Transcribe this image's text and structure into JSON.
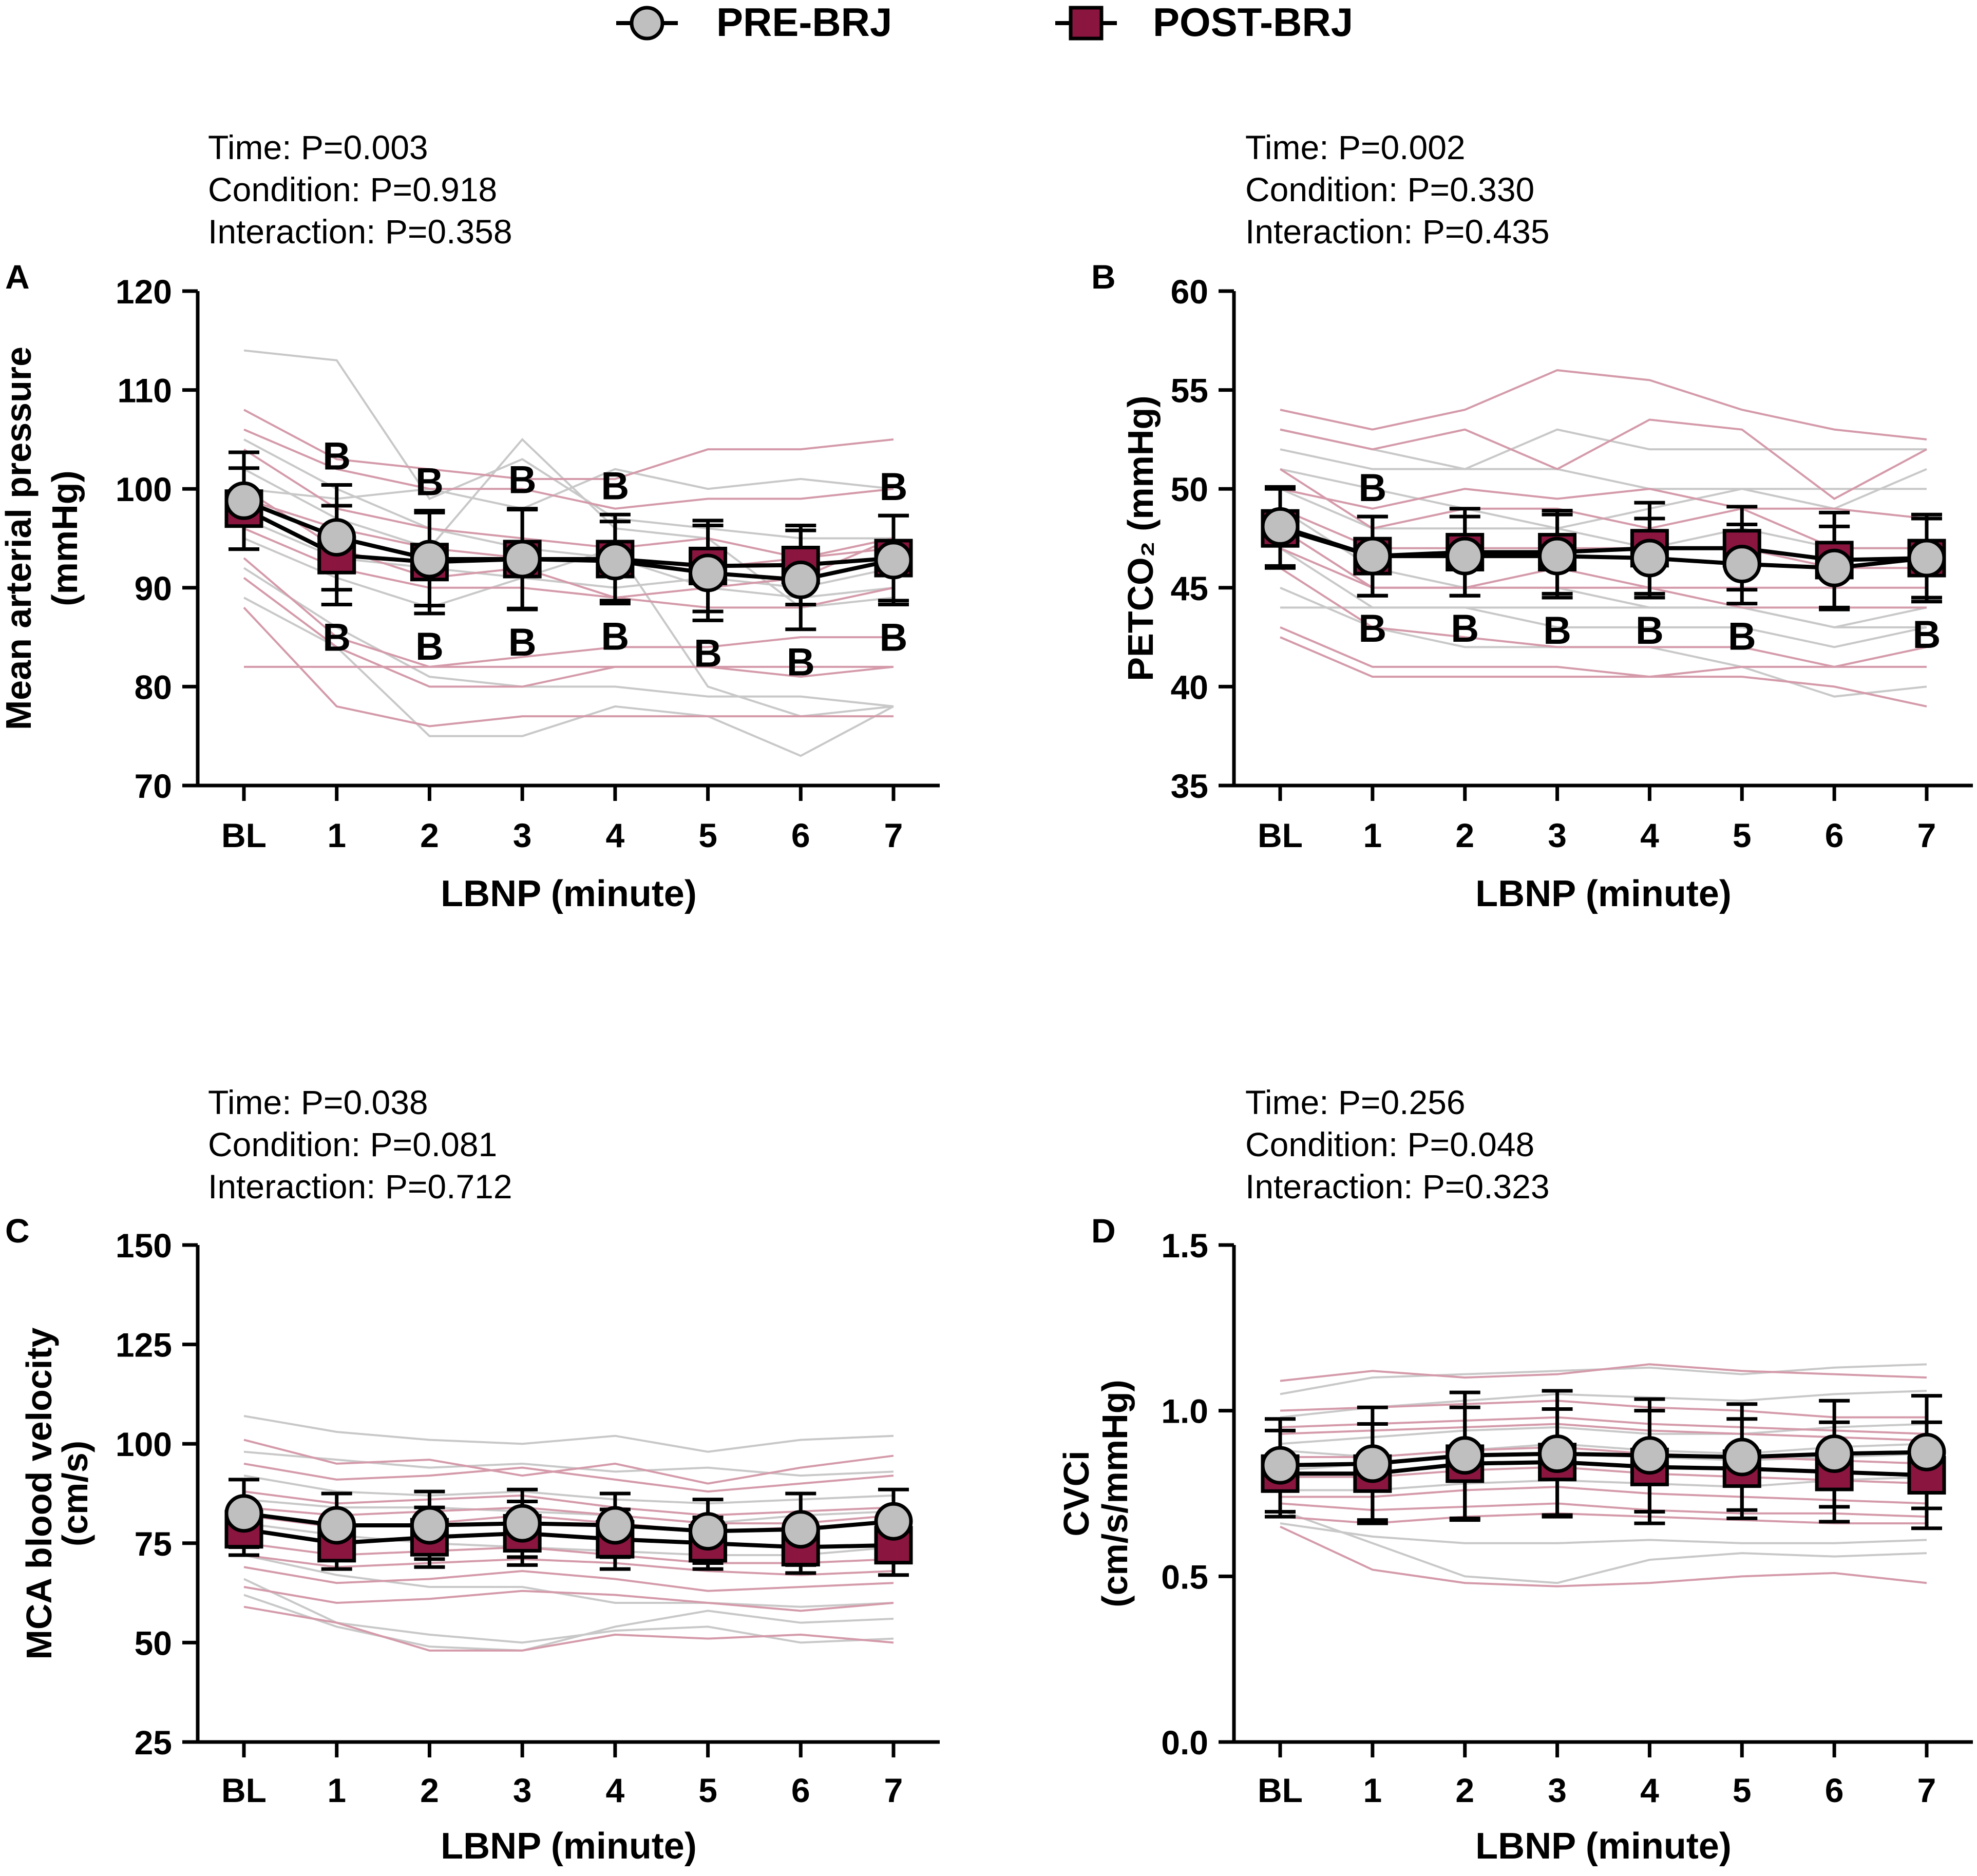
{
  "colors": {
    "pre_fill": "#bfbfbf",
    "post_fill": "#8a1640",
    "pre_individual": "#c8c8c8",
    "post_individual": "#d49aaa",
    "axis": "#000000"
  },
  "legend": [
    {
      "label": "PRE-BRJ",
      "marker": "circle"
    },
    {
      "label": "POST-BRJ",
      "marker": "square"
    }
  ],
  "chart_data": [
    {
      "type": "line",
      "panel": "A",
      "stats": [
        "Time: P=0.003",
        "Condition: P=0.918",
        "Interaction: P=0.358"
      ],
      "ylabel_lines": [
        "Mean arterial pressure",
        "(mmHg)"
      ],
      "xlabel": "LBNP (minute)",
      "categories": [
        "BL",
        "1",
        "2",
        "3",
        "4",
        "5",
        "6",
        "7"
      ],
      "ylim": [
        70,
        120
      ],
      "yticks": [
        70,
        80,
        90,
        100,
        110,
        120
      ],
      "ytick_labels": [
        "70",
        "80",
        "90",
        "100",
        "110",
        "120"
      ],
      "series": [
        {
          "name": "PRE-BRJ",
          "marker": "circle",
          "values": [
            98.8,
            95.1,
            92.9,
            92.9,
            92.7,
            91.5,
            90.8,
            92.8
          ],
          "errors": [
            4.9,
            5.3,
            4.7,
            5.1,
            4.0,
            4.8,
            5.0,
            4.5
          ]
        },
        {
          "name": "POST-BRJ",
          "marker": "square",
          "values": [
            98.0,
            93.3,
            92.6,
            92.9,
            92.9,
            92.2,
            92.3,
            93.0
          ],
          "errors": [
            4.1,
            5.0,
            5.2,
            5.0,
            4.5,
            4.6,
            4.0,
            4.3
          ]
        }
      ],
      "individual_pre": [
        [
          114,
          113,
          99,
          103,
          97,
          96,
          95,
          95
        ],
        [
          102,
          97,
          94,
          105,
          96,
          95,
          88,
          89
        ],
        [
          95,
          91,
          88,
          91,
          94,
          80,
          77,
          78
        ],
        [
          92,
          86,
          81,
          80,
          80,
          79,
          79,
          78
        ],
        [
          105,
          100,
          96,
          94,
          93,
          90,
          89,
          90
        ],
        [
          89,
          84,
          75,
          75,
          78,
          77,
          73,
          78
        ],
        [
          100,
          99,
          100,
          98,
          102,
          100,
          101,
          100
        ],
        [
          97,
          93,
          92,
          91,
          90,
          91,
          90,
          92
        ]
      ],
      "individual_post": [
        [
          108,
          103,
          102,
          101,
          101,
          104,
          104,
          105
        ],
        [
          104,
          98,
          96,
          95,
          94,
          95,
          93,
          94
        ],
        [
          100,
          94,
          91,
          92,
          89,
          90,
          91,
          95
        ],
        [
          96,
          92,
          90,
          90,
          89,
          88,
          88,
          90
        ],
        [
          93,
          85,
          82,
          83,
          84,
          84,
          85,
          85
        ],
        [
          91,
          84,
          80,
          80,
          82,
          82,
          81,
          82
        ],
        [
          88,
          78,
          76,
          77,
          77,
          77,
          77,
          77
        ],
        [
          82,
          82,
          82,
          82,
          82,
          82,
          82,
          82
        ],
        [
          106,
          102,
          100,
          100,
          98,
          99,
          99,
          100
        ],
        [
          99,
          96,
          94,
          93,
          93,
          92,
          93,
          95
        ]
      ],
      "annotations_above": [
        {
          "category": "1",
          "text": "B"
        },
        {
          "category": "2",
          "text": "B"
        },
        {
          "category": "3",
          "text": "B"
        },
        {
          "category": "4",
          "text": "B"
        },
        {
          "category": "7",
          "text": "B"
        }
      ],
      "annotations_below": [
        {
          "category": "1",
          "text": "B"
        },
        {
          "category": "2",
          "text": "B"
        },
        {
          "category": "3",
          "text": "B"
        },
        {
          "category": "4",
          "text": "B"
        },
        {
          "category": "5",
          "text": "B"
        },
        {
          "category": "6",
          "text": "B"
        },
        {
          "category": "7",
          "text": "B"
        }
      ]
    },
    {
      "type": "line",
      "panel": "B",
      "stats": [
        "Time: P=0.002",
        "Condition: P=0.330",
        "Interaction: P=0.435"
      ],
      "ylabel_lines": [
        "PETCO₂ (mmHg)"
      ],
      "xlabel": "LBNP (minute)",
      "categories": [
        "BL",
        "1",
        "2",
        "3",
        "4",
        "5",
        "6",
        "7"
      ],
      "ylim": [
        35,
        60
      ],
      "yticks": [
        35,
        40,
        45,
        50,
        55,
        60
      ],
      "ytick_labels": [
        "35",
        "40",
        "45",
        "50",
        "55",
        "60"
      ],
      "series": [
        {
          "name": "PRE-BRJ",
          "marker": "circle",
          "values": [
            48.1,
            46.6,
            46.6,
            46.6,
            46.5,
            46.2,
            46.0,
            46.5
          ],
          "errors": [
            2.0,
            2.0,
            2.0,
            2.1,
            2.0,
            2.0,
            2.1,
            2.0
          ]
        },
        {
          "name": "POST-BRJ",
          "marker": "square",
          "values": [
            48.0,
            46.6,
            46.8,
            46.8,
            47.0,
            47.0,
            46.4,
            46.5
          ],
          "errors": [
            2.0,
            2.0,
            2.2,
            2.1,
            2.3,
            2.1,
            2.4,
            2.2
          ]
        }
      ],
      "individual_pre": [
        [
          53,
          52,
          51,
          53,
          52,
          52,
          52,
          52
        ],
        [
          51,
          50,
          49,
          48,
          49,
          50,
          50,
          50
        ],
        [
          49,
          46,
          45,
          45,
          44,
          44,
          43,
          44
        ],
        [
          47,
          44,
          44,
          43,
          43,
          43,
          42,
          43
        ],
        [
          45,
          43,
          42,
          42,
          42,
          41,
          39.5,
          40
        ],
        [
          52,
          51,
          51,
          51,
          50,
          50,
          49,
          51
        ],
        [
          50,
          48,
          48,
          48,
          47,
          48,
          47,
          47
        ],
        [
          44,
          44,
          44,
          44,
          44,
          44,
          43,
          43
        ]
      ],
      "individual_post": [
        [
          54,
          53,
          54,
          56,
          55.5,
          54,
          53,
          52.5
        ],
        [
          53,
          52,
          53,
          51,
          53.5,
          53,
          49.5,
          52
        ],
        [
          51,
          48,
          49,
          49,
          48,
          49,
          47,
          47
        ],
        [
          49,
          47,
          47,
          47,
          47,
          47,
          46,
          46
        ],
        [
          48,
          45,
          45,
          45,
          45,
          44,
          44,
          44
        ],
        [
          46,
          43,
          42.5,
          42,
          42,
          42,
          41,
          42
        ],
        [
          43,
          41,
          41,
          41,
          40.5,
          41,
          41,
          41
        ],
        [
          42.5,
          40.5,
          40.5,
          40.5,
          40.5,
          40.5,
          40,
          39
        ],
        [
          50,
          49,
          50,
          49.5,
          50,
          49,
          49,
          48.5
        ],
        [
          47,
          45,
          45,
          46,
          45,
          45,
          45,
          45
        ]
      ],
      "annotations_above": [
        {
          "category": "1",
          "text": "B"
        }
      ],
      "annotations_below": [
        {
          "category": "1",
          "text": "B"
        },
        {
          "category": "2",
          "text": "B"
        },
        {
          "category": "3",
          "text": "B"
        },
        {
          "category": "4",
          "text": "B"
        },
        {
          "category": "5",
          "text": "B"
        },
        {
          "category": "7",
          "text": "B"
        }
      ]
    },
    {
      "type": "line",
      "panel": "C",
      "stats": [
        "Time: P=0.038",
        "Condition: P=0.081",
        "Interaction: P=0.712"
      ],
      "ylabel_lines": [
        "MCA blood velocity",
        "(cm/s)"
      ],
      "xlabel": "LBNP (minute)",
      "categories": [
        "BL",
        "1",
        "2",
        "3",
        "4",
        "5",
        "6",
        "7"
      ],
      "ylim": [
        25,
        150
      ],
      "yticks": [
        25,
        50,
        75,
        100,
        125,
        150
      ],
      "ytick_labels": [
        "25",
        "50",
        "75",
        "100",
        "125",
        "150"
      ],
      "series": [
        {
          "name": "PRE-BRJ",
          "marker": "circle",
          "values": [
            82.5,
            79.5,
            79.5,
            80.0,
            79.5,
            78.0,
            78.5,
            80.5
          ],
          "errors": [
            8.5,
            8.0,
            8.5,
            8.5,
            8.0,
            8.0,
            9.0,
            8.0
          ]
        },
        {
          "name": "POST-BRJ",
          "marker": "square",
          "values": [
            78.5,
            75.0,
            76.5,
            77.5,
            76.0,
            75.0,
            74.0,
            74.5
          ],
          "errors": [
            6.5,
            6.5,
            7.5,
            8.0,
            7.5,
            6.5,
            6.5,
            7.5
          ]
        }
      ],
      "individual_pre": [
        [
          107,
          103,
          101,
          100,
          102,
          98,
          101,
          102
        ],
        [
          98,
          96,
          94,
          95,
          93,
          94,
          92,
          93
        ],
        [
          86,
          84,
          84,
          83,
          82,
          80,
          82,
          83
        ],
        [
          80,
          77,
          75,
          74,
          73,
          72,
          72,
          74
        ],
        [
          72,
          67,
          64,
          64,
          60,
          60,
          59,
          60
        ],
        [
          66,
          55,
          52,
          50,
          53,
          54,
          50,
          51
        ],
        [
          92,
          88,
          87,
          88,
          86,
          85,
          86,
          87
        ],
        [
          62,
          54,
          49,
          48,
          54,
          58,
          55,
          56
        ]
      ],
      "individual_post": [
        [
          101,
          95,
          96,
          92,
          95,
          90,
          94,
          97
        ],
        [
          95,
          91,
          92,
          94,
          91,
          88,
          90,
          92
        ],
        [
          88,
          85,
          86,
          87,
          84,
          82,
          83,
          84
        ],
        [
          82,
          79,
          80,
          82,
          80,
          78,
          79,
          80
        ],
        [
          75,
          72,
          73,
          74,
          72,
          70,
          70,
          71
        ],
        [
          69,
          65,
          66,
          68,
          66,
          63,
          64,
          65
        ],
        [
          64,
          60,
          61,
          63,
          62,
          60,
          58,
          60
        ],
        [
          59,
          55,
          48,
          48,
          52,
          51,
          52,
          50
        ],
        [
          84,
          82,
          83,
          84,
          82,
          80,
          80,
          82
        ],
        [
          72,
          69,
          70,
          71,
          70,
          68,
          67,
          68
        ]
      ],
      "annotations_above": [],
      "annotations_below": []
    },
    {
      "type": "line",
      "panel": "D",
      "stats": [
        "Time: P=0.256",
        "Condition: P=0.048",
        "Interaction: P=0.323"
      ],
      "ylabel_lines": [
        "CVCi",
        "(cm/s/mmHg)"
      ],
      "xlabel": "LBNP (minute)",
      "categories": [
        "BL",
        "1",
        "2",
        "3",
        "4",
        "5",
        "6",
        "7"
      ],
      "ylim": [
        0.0,
        1.5
      ],
      "yticks": [
        0.0,
        0.5,
        1.0,
        1.5
      ],
      "ytick_labels": [
        "0.0",
        "0.5",
        "1.0",
        "1.5"
      ],
      "series": [
        {
          "name": "PRE-BRJ",
          "marker": "circle",
          "values": [
            0.835,
            0.84,
            0.865,
            0.87,
            0.865,
            0.86,
            0.87,
            0.875
          ],
          "errors": [
            0.14,
            0.17,
            0.19,
            0.19,
            0.17,
            0.16,
            0.16,
            0.17
          ]
        },
        {
          "name": "POST-BRJ",
          "marker": "square",
          "values": [
            0.81,
            0.81,
            0.84,
            0.845,
            0.83,
            0.825,
            0.815,
            0.805
          ],
          "errors": [
            0.13,
            0.15,
            0.17,
            0.16,
            0.17,
            0.15,
            0.15,
            0.16
          ]
        }
      ],
      "individual_pre": [
        [
          1.05,
          1.1,
          1.11,
          1.12,
          1.13,
          1.11,
          1.13,
          1.14
        ],
        [
          0.98,
          1.01,
          1.03,
          1.05,
          1.04,
          1.03,
          1.05,
          1.06
        ],
        [
          0.9,
          0.92,
          0.94,
          0.95,
          0.93,
          0.93,
          0.95,
          0.96
        ],
        [
          0.82,
          0.84,
          0.86,
          0.87,
          0.86,
          0.85,
          0.86,
          0.87
        ],
        [
          0.76,
          0.76,
          0.78,
          0.79,
          0.78,
          0.77,
          0.79,
          0.8
        ],
        [
          0.7,
          0.6,
          0.5,
          0.48,
          0.55,
          0.57,
          0.56,
          0.57
        ],
        [
          0.66,
          0.62,
          0.6,
          0.6,
          0.61,
          0.6,
          0.6,
          0.61
        ],
        [
          0.88,
          0.86,
          0.88,
          0.9,
          0.88,
          0.87,
          0.89,
          0.9
        ]
      ],
      "individual_post": [
        [
          1.09,
          1.12,
          1.1,
          1.11,
          1.14,
          1.12,
          1.11,
          1.1
        ],
        [
          1.0,
          1.01,
          1.02,
          1.03,
          1.01,
          1.0,
          0.98,
          0.98
        ],
        [
          0.93,
          0.94,
          0.95,
          0.96,
          0.94,
          0.93,
          0.92,
          0.91
        ],
        [
          0.86,
          0.86,
          0.88,
          0.89,
          0.87,
          0.86,
          0.85,
          0.84
        ],
        [
          0.8,
          0.8,
          0.82,
          0.83,
          0.81,
          0.8,
          0.79,
          0.78
        ],
        [
          0.74,
          0.74,
          0.76,
          0.77,
          0.75,
          0.74,
          0.73,
          0.72
        ],
        [
          0.68,
          0.66,
          0.68,
          0.69,
          0.68,
          0.67,
          0.66,
          0.66
        ],
        [
          0.65,
          0.52,
          0.48,
          0.47,
          0.48,
          0.5,
          0.51,
          0.48
        ],
        [
          0.72,
          0.7,
          0.71,
          0.72,
          0.7,
          0.69,
          0.69,
          0.68
        ],
        [
          0.95,
          0.96,
          0.97,
          0.98,
          0.96,
          0.95,
          0.94,
          0.93
        ]
      ],
      "annotations_above": [],
      "annotations_below": []
    }
  ]
}
